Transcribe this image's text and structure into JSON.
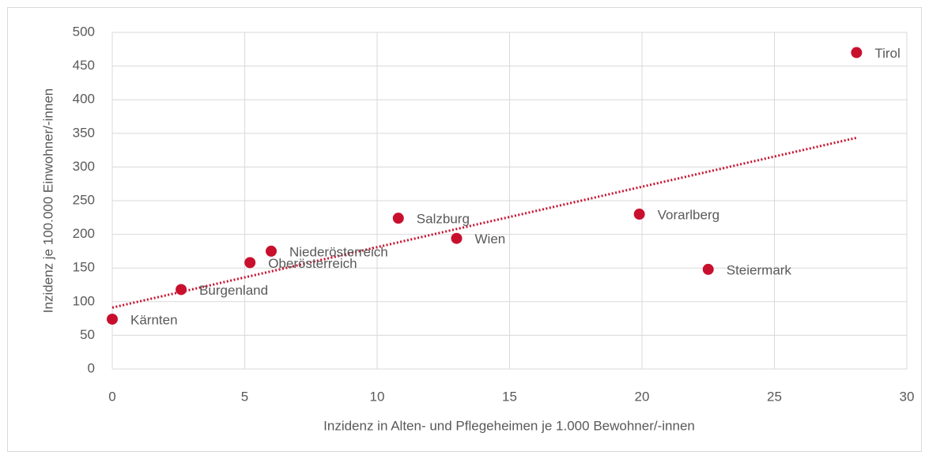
{
  "chart_data": {
    "type": "scatter",
    "x_label": "Inzidenz in Alten- und Pflegeheimen je 1.000 Bewohner/-innen",
    "y_label": "Inzidenz je 100.000 Einwohner/-innen",
    "labels": [
      "Kärnten",
      "Burgenland",
      "Oberösterreich",
      "Niederösterreich",
      "Salzburg",
      "Wien",
      "Vorarlberg",
      "Steiermark",
      "Tirol"
    ],
    "x": [
      0,
      2.6,
      5.2,
      6.0,
      10.8,
      13.0,
      19.9,
      22.5,
      28.1
    ],
    "values": [
      74,
      118,
      158,
      175,
      224,
      194,
      230,
      148,
      470
    ],
    "color": "#c8102e",
    "trendline": "linear",
    "xlim": [
      0,
      30
    ],
    "xticks": [
      0,
      5,
      10,
      15,
      20,
      25,
      30
    ],
    "ylim": [
      0,
      500
    ],
    "yticks": [
      0,
      50,
      100,
      150,
      200,
      250,
      300,
      350,
      400,
      450,
      500
    ],
    "grid": true
  }
}
